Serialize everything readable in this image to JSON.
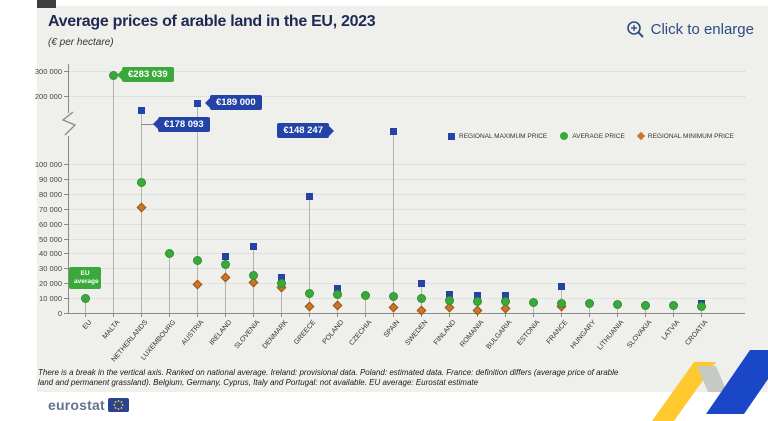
{
  "header": {
    "title": "Average prices of arable land in the EU, 2023",
    "unit": "(€ per hectare)",
    "enlarge_label": "Click to enlarge"
  },
  "chart_data": {
    "type": "scatter",
    "title": "Average prices of arable land in the EU, 2023",
    "ylabel": "€ per hectare",
    "grid": "dotted horizontal",
    "legend_position": "upper-right",
    "y_axis": {
      "ticks": [
        "300 000",
        "200 000",
        "100 000",
        "90 000",
        "80 000",
        "70 000",
        "60 000",
        "50 000",
        "40 000",
        "30 000",
        "20 000",
        "10 000",
        "0"
      ],
      "tick_values": [
        300000,
        200000,
        100000,
        90000,
        80000,
        70000,
        60000,
        50000,
        40000,
        30000,
        20000,
        10000,
        0
      ],
      "axis_break": "between 100 000 and 200 000"
    },
    "categories": [
      "EU",
      "MALTA",
      "NETHERLANDS",
      "LUXEMBOURG",
      "AUSTRIA",
      "IRELAND",
      "SLOVENIA",
      "DENMARK",
      "GREECE",
      "POLAND",
      "CZECHIA",
      "SPAIN",
      "SWEDEN",
      "FINLAND",
      "ROMANIA",
      "BULGARIA",
      "ESTONIA",
      "FRANCE",
      "HUNGARY",
      "LITHUANIA",
      "SLOVAKIA",
      "LATVIA",
      "CROATIA"
    ],
    "series": [
      {
        "name": "REGIONAL MAXIMUM PRICE",
        "marker": "square",
        "color": "#2443a6",
        "values": [
          null,
          null,
          178093,
          null,
          189000,
          38000,
          44500,
          23500,
          78000,
          16500,
          null,
          148247,
          19500,
          12500,
          11500,
          11800,
          null,
          17500,
          null,
          null,
          null,
          null,
          6500
        ]
      },
      {
        "name": "AVERAGE PRICE",
        "marker": "circle",
        "color": "#3aa93c",
        "values": [
          9800,
          283039,
          87500,
          40000,
          35000,
          32500,
          25000,
          19500,
          12800,
          12300,
          12000,
          11000,
          10000,
          8600,
          8000,
          7800,
          7000,
          6600,
          6200,
          5800,
          5300,
          4800,
          4500
        ]
      },
      {
        "name": "REGIONAL MINIMUM PRICE",
        "marker": "diamond",
        "color": "#c8772b",
        "values": [
          null,
          null,
          70500,
          null,
          19000,
          23500,
          20500,
          17000,
          4500,
          5000,
          null,
          3500,
          1500,
          3800,
          1500,
          3300,
          null,
          4300,
          null,
          null,
          null,
          null,
          null
        ]
      }
    ],
    "callouts": [
      {
        "category": "MALTA",
        "series": "AVERAGE PRICE",
        "text": "€283 039",
        "color": "#3aa93c",
        "arrow": "left"
      },
      {
        "category": "NETHERLANDS",
        "series": "REGIONAL MAXIMUM PRICE",
        "text": "€178 093",
        "color": "#2443a6",
        "arrow": "left"
      },
      {
        "category": "AUSTRIA",
        "series": "REGIONAL MAXIMUM PRICE",
        "text": "€189 000",
        "color": "#2443a6",
        "arrow": "left"
      },
      {
        "category": "SPAIN",
        "series": "REGIONAL MAXIMUM PRICE",
        "text": "€148 247",
        "color": "#2443a6",
        "arrow": "right"
      }
    ],
    "point_label": {
      "category": "EU",
      "line1": "EU",
      "line2": "average",
      "color": "#3aa93c"
    }
  },
  "footnote": {
    "line1": "There is a break in the vertical axis. Ranked on national average. Ireland: provisional data. Poland: estimated data. France: definition differs (average price of arable",
    "line2": "land and permanent grassland). Belgium, Germany, Cyprus, Italy and Portugal: not available. EU average: Eurostat estimate"
  },
  "footer": {
    "brand": "eurostat"
  }
}
